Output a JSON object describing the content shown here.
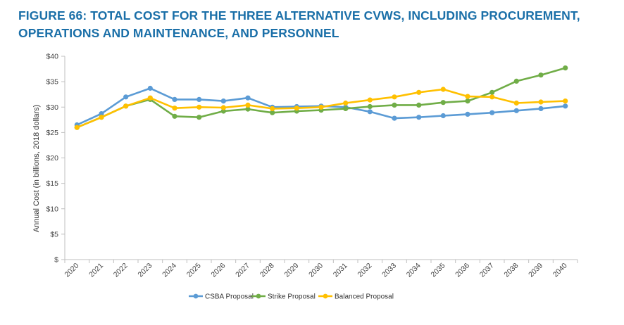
{
  "figure": {
    "title_line1": "FIGURE 66: TOTAL COST FOR THE THREE ALTERNATIVE CVWS, INCLUDING PROCUREMENT,",
    "title_line2": "OPERATIONS AND MAINTENANCE, AND PERSONNEL"
  },
  "chart_data": {
    "type": "line",
    "title": "FIGURE 66: TOTAL COST FOR THE THREE ALTERNATIVE CVWS, INCLUDING PROCUREMENT, OPERATIONS AND MAINTENANCE, AND PERSONNEL",
    "xlabel": "",
    "ylabel": "Annual Cost (in billions, 2018 dollars)",
    "ylim": [
      0,
      40
    ],
    "y_ticks": [
      {
        "value": 0,
        "label": "$"
      },
      {
        "value": 5,
        "label": "$5"
      },
      {
        "value": 10,
        "label": "$10"
      },
      {
        "value": 15,
        "label": "$15"
      },
      {
        "value": 20,
        "label": "$20"
      },
      {
        "value": 25,
        "label": "$25"
      },
      {
        "value": 30,
        "label": "$30"
      },
      {
        "value": 35,
        "label": "$35"
      },
      {
        "value": 40,
        "label": "$40"
      }
    ],
    "grid": false,
    "legend_position": "bottom",
    "x": [
      "2020",
      "2021",
      "2022",
      "2023",
      "2024",
      "2025",
      "2026",
      "2027",
      "2028",
      "2029",
      "2030",
      "2031",
      "2032",
      "2033",
      "2034",
      "2035",
      "2036",
      "2037",
      "2038",
      "2039",
      "2040"
    ],
    "series": [
      {
        "name": "CSBA Proposal",
        "color": "#5b9bd5",
        "values": [
          26.5,
          28.7,
          32.0,
          33.7,
          31.5,
          31.5,
          31.2,
          31.8,
          30.0,
          30.1,
          30.2,
          30.0,
          29.1,
          27.8,
          28.0,
          28.3,
          28.6,
          28.9,
          29.3,
          29.7,
          30.2
        ]
      },
      {
        "name": "Strike Proposal",
        "color": "#70ad47",
        "values": [
          26.0,
          28.0,
          30.2,
          31.5,
          28.2,
          28.0,
          29.2,
          29.6,
          28.9,
          29.2,
          29.4,
          29.7,
          30.1,
          30.4,
          30.4,
          30.9,
          31.2,
          32.9,
          35.1,
          36.3,
          37.7
        ]
      },
      {
        "name": "Balanced Proposal",
        "color": "#ffc000",
        "values": [
          26.0,
          28.0,
          30.2,
          31.8,
          29.8,
          30.0,
          29.9,
          30.4,
          29.7,
          29.8,
          30.0,
          30.8,
          31.4,
          32.0,
          32.9,
          33.5,
          32.1,
          32.0,
          30.8,
          31.0,
          31.2
        ]
      }
    ]
  }
}
